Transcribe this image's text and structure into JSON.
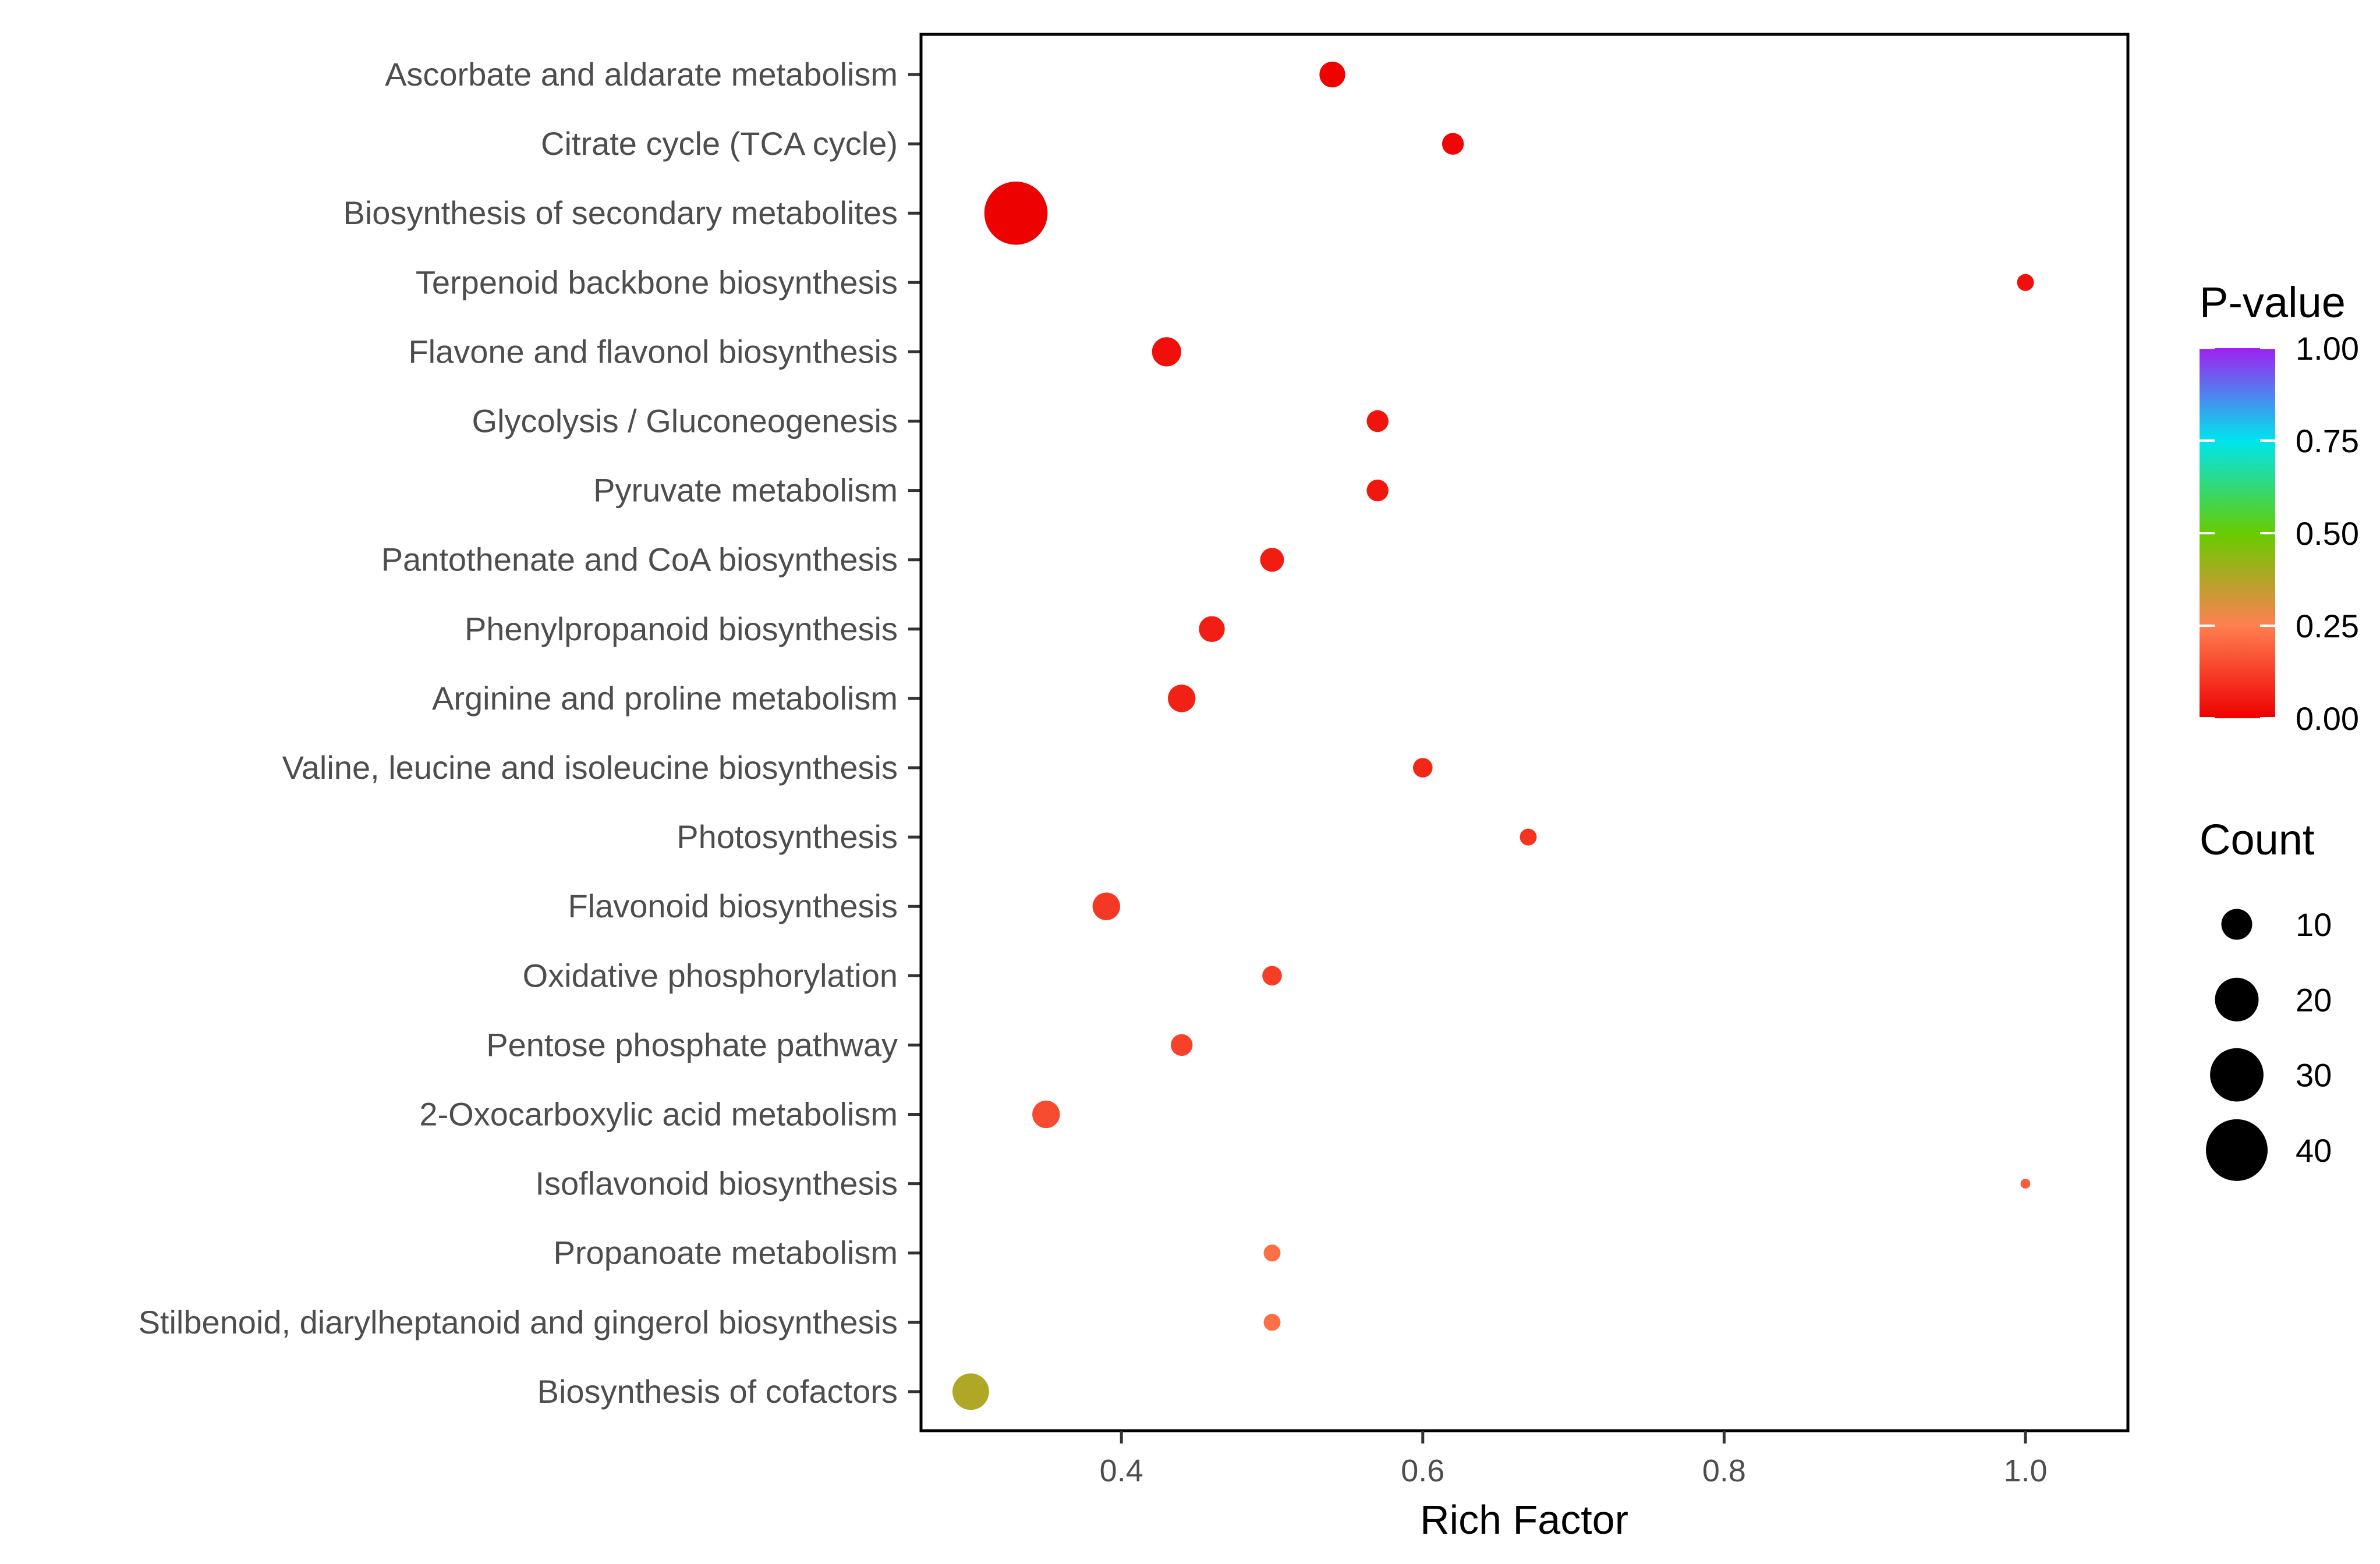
{
  "chart_data": {
    "type": "scatter",
    "title": "",
    "xlabel": "Rich Factor",
    "ylabel": "",
    "xlim": [
      0.267,
      1.068
    ],
    "xticks": [
      0.4,
      0.6,
      0.8,
      1.0
    ],
    "xtick_labels": [
      "0.4",
      "0.6",
      "0.8",
      "1.0"
    ],
    "grid": false,
    "categories": [
      "Ascorbate and aldarate metabolism",
      "Citrate cycle (TCA cycle)",
      "Biosynthesis of secondary metabolites",
      "Terpenoid backbone biosynthesis",
      "Flavone and flavonol biosynthesis",
      "Glycolysis / Gluconeogenesis",
      "Pyruvate metabolism",
      "Pantothenate and CoA biosynthesis",
      "Phenylpropanoid biosynthesis",
      "Arginine and proline metabolism",
      "Valine, leucine and isoleucine biosynthesis",
      "Photosynthesis",
      "Flavonoid biosynthesis",
      "Oxidative phosphorylation",
      "Pentose phosphate pathway",
      "2-Oxocarboxylic acid metabolism",
      "Isoflavonoid biosynthesis",
      "Propanoate metabolism",
      "Stilbenoid, diarylheptanoid and gingerol biosynthesis",
      "Biosynthesis of cofactors"
    ],
    "points": [
      {
        "pathway": "Ascorbate and aldarate metabolism",
        "rich_factor": 0.54,
        "count": 7,
        "p_value": 0.005
      },
      {
        "pathway": "Citrate cycle (TCA cycle)",
        "rich_factor": 0.62,
        "count": 5,
        "p_value": 0.01
      },
      {
        "pathway": "Biosynthesis of secondary metabolites",
        "rich_factor": 0.33,
        "count": 42,
        "p_value": 0.002
      },
      {
        "pathway": "Terpenoid backbone biosynthesis",
        "rich_factor": 1.0,
        "count": 3,
        "p_value": 0.03
      },
      {
        "pathway": "Flavone and flavonol biosynthesis",
        "rich_factor": 0.43,
        "count": 9,
        "p_value": 0.03
      },
      {
        "pathway": "Glycolysis / Gluconeogenesis",
        "rich_factor": 0.57,
        "count": 5,
        "p_value": 0.04
      },
      {
        "pathway": "Pyruvate metabolism",
        "rich_factor": 0.57,
        "count": 5,
        "p_value": 0.045
      },
      {
        "pathway": "Pantothenate and CoA biosynthesis",
        "rich_factor": 0.5,
        "count": 6,
        "p_value": 0.055
      },
      {
        "pathway": "Phenylpropanoid biosynthesis",
        "rich_factor": 0.46,
        "count": 7,
        "p_value": 0.06
      },
      {
        "pathway": "Arginine and proline metabolism",
        "rich_factor": 0.44,
        "count": 8,
        "p_value": 0.065
      },
      {
        "pathway": "Valine, leucine and isoleucine biosynthesis",
        "rich_factor": 0.6,
        "count": 4,
        "p_value": 0.075
      },
      {
        "pathway": "Photosynthesis",
        "rich_factor": 0.67,
        "count": 3,
        "p_value": 0.1
      },
      {
        "pathway": "Flavonoid biosynthesis",
        "rich_factor": 0.39,
        "count": 8,
        "p_value": 0.11
      },
      {
        "pathway": "Oxidative phosphorylation",
        "rich_factor": 0.5,
        "count": 4,
        "p_value": 0.12
      },
      {
        "pathway": "Pentose phosphate pathway",
        "rich_factor": 0.44,
        "count": 5,
        "p_value": 0.13
      },
      {
        "pathway": "2-Oxocarboxylic acid metabolism",
        "rich_factor": 0.35,
        "count": 8,
        "p_value": 0.15
      },
      {
        "pathway": "Isoflavonoid biosynthesis",
        "rich_factor": 1.0,
        "count": 1,
        "p_value": 0.18
      },
      {
        "pathway": "Propanoate metabolism",
        "rich_factor": 0.5,
        "count": 3,
        "p_value": 0.22
      },
      {
        "pathway": "Stilbenoid, diarylheptanoid and gingerol biosynthesis",
        "rich_factor": 0.5,
        "count": 3,
        "p_value": 0.22
      },
      {
        "pathway": "Biosynthesis of cofactors",
        "rich_factor": 0.3,
        "count": 14,
        "p_value": 0.38
      }
    ],
    "legend": {
      "color_title": "P-value",
      "color_breaks": [
        0.0,
        0.25,
        0.5,
        0.75,
        1.0
      ],
      "color_break_labels": [
        "0.00",
        "0.25",
        "0.50",
        "0.75",
        "1.00"
      ],
      "color_scale": [
        "#ee0000",
        "#ff7f50",
        "#66cc00",
        "#00e5ee",
        "#a020f0"
      ],
      "size_title": "Count",
      "size_breaks": [
        10,
        20,
        30,
        40
      ],
      "size_break_labels": [
        "10",
        "20",
        "30",
        "40"
      ],
      "size_color": "#000000",
      "placement": "right"
    }
  }
}
